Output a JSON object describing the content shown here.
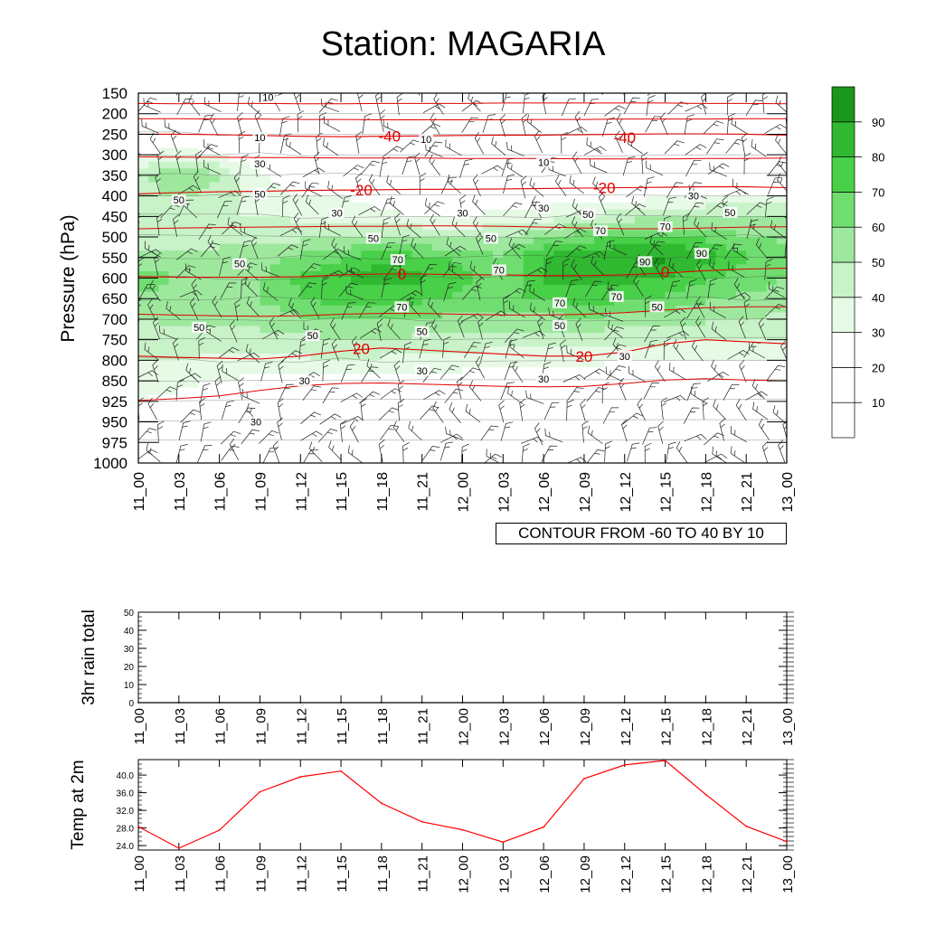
{
  "title": "Station: MAGARIA",
  "chart_data": [
    {
      "type": "heatmap",
      "name": "relative humidity cross-section",
      "ylabel": "Pressure (hPa)",
      "pressure_levels": [
        150,
        200,
        250,
        300,
        350,
        400,
        450,
        500,
        550,
        600,
        650,
        700,
        750,
        800,
        850,
        925,
        950,
        975,
        1000
      ],
      "time_labels": [
        "11_00",
        "11_03",
        "11_06",
        "11_09",
        "11_12",
        "11_15",
        "11_18",
        "11_21",
        "12_00",
        "12_03",
        "12_06",
        "12_09",
        "12_12",
        "12_15",
        "12_18",
        "12_21",
        "13_00"
      ],
      "colorbar_levels": [
        10,
        20,
        30,
        40,
        50,
        60,
        70,
        80,
        90
      ],
      "colorbar_colors": [
        "#ffffff",
        "#ffffff",
        "#ffffff",
        "#e6fae6",
        "#c8f2c8",
        "#9ee89e",
        "#70dd70",
        "#48d048",
        "#30b830",
        "#1a961a"
      ],
      "humidity_rows": [
        {
          "p": 150,
          "values": [
            10,
            10,
            10,
            10,
            10,
            10,
            10,
            10,
            10,
            10,
            10,
            10,
            10,
            10,
            10,
            10,
            10
          ]
        },
        {
          "p": 200,
          "values": [
            10,
            10,
            10,
            10,
            10,
            10,
            10,
            10,
            10,
            10,
            10,
            10,
            10,
            10,
            10,
            10,
            10
          ]
        },
        {
          "p": 250,
          "values": [
            20,
            20,
            15,
            10,
            10,
            10,
            10,
            10,
            10,
            10,
            10,
            10,
            10,
            10,
            10,
            10,
            10
          ]
        },
        {
          "p": 300,
          "values": [
            30,
            35,
            30,
            20,
            15,
            10,
            10,
            10,
            10,
            10,
            10,
            15,
            15,
            10,
            10,
            10,
            10
          ]
        },
        {
          "p": 350,
          "values": [
            45,
            62,
            50,
            30,
            25,
            20,
            15,
            15,
            15,
            15,
            15,
            20,
            20,
            20,
            20,
            20,
            20
          ]
        },
        {
          "p": 400,
          "values": [
            45,
            52,
            45,
            35,
            30,
            30,
            25,
            25,
            25,
            25,
            25,
            25,
            25,
            28,
            30,
            30,
            30
          ]
        },
        {
          "p": 450,
          "values": [
            40,
            40,
            40,
            40,
            38,
            35,
            32,
            30,
            30,
            32,
            35,
            40,
            45,
            48,
            50,
            50,
            50
          ]
        },
        {
          "p": 500,
          "values": [
            40,
            42,
            45,
            45,
            48,
            50,
            52,
            50,
            48,
            50,
            58,
            65,
            72,
            72,
            68,
            60,
            58
          ]
        },
        {
          "p": 550,
          "values": [
            52,
            55,
            55,
            55,
            62,
            68,
            78,
            72,
            68,
            60,
            82,
            88,
            90,
            93,
            85,
            70,
            65
          ]
        },
        {
          "p": 600,
          "values": [
            65,
            60,
            55,
            58,
            72,
            80,
            85,
            82,
            72,
            62,
            82,
            85,
            82,
            80,
            72,
            65,
            60
          ]
        },
        {
          "p": 650,
          "values": [
            58,
            55,
            55,
            60,
            70,
            75,
            75,
            72,
            68,
            65,
            72,
            75,
            72,
            68,
            62,
            58,
            55
          ]
        },
        {
          "p": 700,
          "values": [
            50,
            52,
            52,
            55,
            58,
            62,
            60,
            58,
            58,
            56,
            56,
            58,
            56,
            55,
            52,
            50,
            48
          ]
        },
        {
          "p": 750,
          "values": [
            45,
            45,
            45,
            45,
            48,
            50,
            50,
            48,
            48,
            45,
            45,
            45,
            42,
            42,
            40,
            40,
            40
          ]
        },
        {
          "p": 800,
          "values": [
            40,
            40,
            38,
            35,
            38,
            40,
            38,
            35,
            35,
            33,
            32,
            32,
            30,
            30,
            30,
            30,
            30
          ]
        },
        {
          "p": 850,
          "values": [
            32,
            32,
            30,
            28,
            28,
            28,
            28,
            25,
            25,
            25,
            25,
            25,
            25,
            25,
            25,
            25,
            25
          ]
        },
        {
          "p": 925,
          "values": [
            30,
            28,
            25,
            22,
            20,
            20,
            20,
            20,
            20,
            20,
            20,
            20,
            20,
            20,
            20,
            20,
            20
          ]
        },
        {
          "p": 950,
          "values": [
            25,
            25,
            22,
            20,
            20,
            20,
            20,
            20,
            20,
            20,
            20,
            20,
            20,
            20,
            20,
            20,
            20
          ]
        },
        {
          "p": 975,
          "values": [
            20,
            20,
            20,
            20,
            20,
            20,
            20,
            20,
            20,
            20,
            20,
            20,
            20,
            20,
            20,
            20,
            20
          ]
        },
        {
          "p": 1000,
          "values": [
            20,
            20,
            20,
            20,
            20,
            20,
            20,
            20,
            20,
            20,
            20,
            20,
            20,
            20,
            20,
            20,
            20
          ]
        }
      ],
      "humidity_labels": [
        {
          "text": "10",
          "t": 3.2,
          "p": 160
        },
        {
          "text": "10",
          "t": 3.0,
          "p": 258
        },
        {
          "text": "10",
          "t": 7.1,
          "p": 262
        },
        {
          "text": "10",
          "t": 10.0,
          "p": 318
        },
        {
          "text": "30",
          "t": 3.0,
          "p": 322
        },
        {
          "text": "50",
          "t": 1.0,
          "p": 410
        },
        {
          "text": "50",
          "t": 3.0,
          "p": 395
        },
        {
          "text": "30",
          "t": 4.9,
          "p": 442
        },
        {
          "text": "30",
          "t": 8.0,
          "p": 442
        },
        {
          "text": "30",
          "t": 10.0,
          "p": 430
        },
        {
          "text": "30",
          "t": 13.7,
          "p": 400
        },
        {
          "text": "50",
          "t": 11.1,
          "p": 445
        },
        {
          "text": "50",
          "t": 14.6,
          "p": 440
        },
        {
          "text": "50",
          "t": 5.8,
          "p": 503
        },
        {
          "text": "50",
          "t": 8.7,
          "p": 503
        },
        {
          "text": "50",
          "t": 2.5,
          "p": 565
        },
        {
          "text": "70",
          "t": 6.4,
          "p": 555
        },
        {
          "text": "70",
          "t": 11.4,
          "p": 485
        },
        {
          "text": "70",
          "t": 13.0,
          "p": 475
        },
        {
          "text": "90",
          "t": 13.9,
          "p": 540
        },
        {
          "text": "90",
          "t": 12.5,
          "p": 560
        },
        {
          "text": "70",
          "t": 8.9,
          "p": 580
        },
        {
          "text": "70",
          "t": 6.5,
          "p": 670
        },
        {
          "text": "70",
          "t": 10.4,
          "p": 660
        },
        {
          "text": "70",
          "t": 11.8,
          "p": 645
        },
        {
          "text": "50",
          "t": 12.8,
          "p": 670
        },
        {
          "text": "50",
          "t": 7.0,
          "p": 730
        },
        {
          "text": "50",
          "t": 10.4,
          "p": 715
        },
        {
          "text": "50",
          "t": 1.5,
          "p": 720
        },
        {
          "text": "50",
          "t": 4.3,
          "p": 740
        },
        {
          "text": "30",
          "t": 7.0,
          "p": 825
        },
        {
          "text": "30",
          "t": 10.0,
          "p": 845
        },
        {
          "text": "30",
          "t": 12.0,
          "p": 790
        },
        {
          "text": "30",
          "t": 4.1,
          "p": 850
        },
        {
          "text": "30",
          "t": 2.9,
          "p": 950
        }
      ],
      "temperature_isotherms": [
        {
          "value": -40,
          "label": "-40",
          "p_values": [
            250,
            250,
            251,
            253,
            255,
            256,
            255,
            254,
            253,
            252,
            252,
            251,
            250,
            249,
            249,
            250,
            252
          ]
        },
        {
          "value": -20,
          "label": "-20",
          "p_values": [
            395,
            392,
            390,
            389,
            387,
            386,
            385,
            384,
            384,
            383,
            382,
            381,
            380,
            379,
            378,
            378,
            380
          ]
        },
        {
          "value": 0,
          "label": "0",
          "p_values": [
            596,
            598,
            598,
            598,
            597,
            592,
            590,
            590,
            592,
            592,
            594,
            594,
            592,
            588,
            582,
            578,
            576
          ]
        },
        {
          "value": 20,
          "label": "20",
          "p_values": [
            790,
            793,
            795,
            797,
            790,
            778,
            770,
            775,
            780,
            785,
            790,
            790,
            780,
            760,
            750,
            755,
            760
          ]
        }
      ],
      "temperature_labels": [
        {
          "text": "-40",
          "t": 6.2,
          "p": 254
        },
        {
          "text": "-40",
          "t": 12.0,
          "p": 258
        },
        {
          "text": "-20",
          "t": 5.5,
          "p": 385
        },
        {
          "text": "-20",
          "t": 11.5,
          "p": 380
        },
        {
          "text": "0",
          "t": 6.5,
          "p": 590
        },
        {
          "text": "0",
          "t": 13.0,
          "p": 585
        },
        {
          "text": "20",
          "t": 5.5,
          "p": 772
        },
        {
          "text": "20",
          "t": 11.0,
          "p": 790
        }
      ],
      "contour_note": "CONTOUR FROM -60 TO 40 BY 10"
    },
    {
      "type": "line",
      "name": "3hr rain total",
      "ylabel": "3hr rain total",
      "ylim": [
        0,
        50
      ],
      "yticks": [
        "0",
        "10",
        "20",
        "30",
        "40",
        "50"
      ],
      "x": [
        "11_00",
        "11_03",
        "11_06",
        "11_09",
        "11_12",
        "11_15",
        "11_18",
        "11_21",
        "12_00",
        "12_03",
        "12_06",
        "12_09",
        "12_12",
        "12_15",
        "12_18",
        "12_21",
        "13_00"
      ],
      "values": [
        0,
        0,
        0,
        0,
        0,
        0,
        0,
        0,
        0,
        0,
        0,
        0,
        0,
        0,
        0,
        0,
        0
      ]
    },
    {
      "type": "line",
      "name": "Temp at 2m",
      "ylabel": "Temp at 2m",
      "ylim": [
        23.0,
        43.5
      ],
      "yticks": [
        "24.0",
        "28.0",
        "32.0",
        "36.0",
        "40.0"
      ],
      "x": [
        "11_00",
        "11_03",
        "11_06",
        "11_09",
        "11_12",
        "11_15",
        "11_18",
        "11_21",
        "12_00",
        "12_03",
        "12_06",
        "12_09",
        "12_12",
        "12_15",
        "12_18",
        "12_21",
        "13_00"
      ],
      "values": [
        28.3,
        23.4,
        27.5,
        36.2,
        39.6,
        40.9,
        33.6,
        29.4,
        27.6,
        24.8,
        28.2,
        39.2,
        42.3,
        43.3,
        35.6,
        28.4,
        24.9
      ],
      "color": "#ff0000"
    }
  ]
}
